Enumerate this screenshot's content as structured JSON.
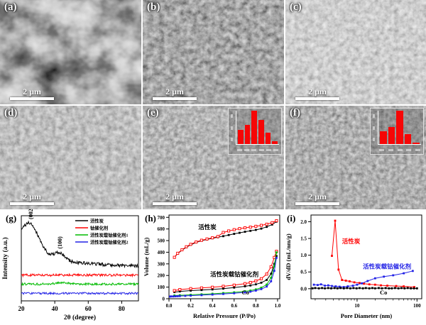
{
  "sem_panels": [
    {
      "label": "(a)",
      "scale_bar": "2 μm",
      "description": "macroporous activated carbon SEM"
    },
    {
      "label": "(b)",
      "scale_bar": "2 μm",
      "description": "rough aggregated carbon SEM"
    },
    {
      "label": "(c)",
      "scale_bar": "2 μm",
      "description": "fluffy granular particles SEM"
    },
    {
      "label": "(d)",
      "scale_bar": "2 μm",
      "description": "granular catalyst SEM"
    },
    {
      "label": "(e)",
      "scale_bar": "2 μm",
      "description": "catalyst SEM with size-distribution inset",
      "inset": {
        "bar_color": "#f60606",
        "bars": [
          0.42,
          0.58,
          1.0,
          0.72,
          0.35,
          0.08
        ]
      }
    },
    {
      "label": "(f)",
      "scale_bar": "2 μm",
      "description": "catalyst SEM with size-distribution inset",
      "inset": {
        "bar_color": "#f60606",
        "bars": [
          0.38,
          0.52,
          1.0,
          0.3,
          0.05
        ]
      }
    }
  ],
  "chart_data": [
    {
      "id": "g",
      "type": "line",
      "panel_label": "(g)",
      "xlabel": "2θ (degree)",
      "ylabel": "Intensity (a.u.)",
      "xlim": [
        20,
        90
      ],
      "x_ticks": [
        20,
        40,
        60,
        80
      ],
      "legend_position": "top-right",
      "grid": false,
      "peak_annotations": [
        {
          "text": "(002)",
          "x": 25.5
        },
        {
          "text": "(100)",
          "x": 43
        }
      ],
      "series": [
        {
          "name": "活性炭",
          "color": "#000000",
          "baseline": 2.85,
          "decay": 0.5,
          "noise": 0.14,
          "peaks": [
            {
              "center": 25.5,
              "height": 1.9,
              "width": 7
            },
            {
              "center": 43,
              "height": 0.55,
              "width": 4.5
            },
            {
              "center": 14,
              "height": 1.6,
              "width": 20
            }
          ]
        },
        {
          "name": "钴催化剂",
          "color": "#ff0000",
          "baseline": 2.12,
          "decay": 0,
          "noise": 0.1,
          "peaks": []
        },
        {
          "name": "活性炭载钴催化剂1",
          "color": "#00bb00",
          "baseline": 1.38,
          "decay": 0,
          "noise": 0.09,
          "peaks": [
            {
              "center": 44,
              "height": 0.12,
              "width": 5
            }
          ]
        },
        {
          "name": "活性炭载钴催化剂2",
          "color": "#2222e6",
          "baseline": 0.62,
          "decay": 0,
          "noise": 0.08,
          "peaks": []
        }
      ]
    },
    {
      "id": "h",
      "type": "line",
      "panel_label": "(h)",
      "xlabel": "Relative Pressure (P/Po)",
      "ylabel": "Volume (mL/g)",
      "xlim": [
        0,
        1.02
      ],
      "ylim": [
        0,
        720
      ],
      "x_ticks": [
        0,
        0.2,
        0.4,
        0.6,
        0.8,
        1.0
      ],
      "y_ticks": [
        0,
        100,
        200,
        300,
        400,
        500,
        600,
        700
      ],
      "annotations": [
        {
          "text": "活性炭",
          "x": 0.27,
          "y": 598,
          "color": "#000000"
        },
        {
          "text": "活性炭载钴催化剂",
          "x": 0.38,
          "y": 193,
          "color": "#000000"
        },
        {
          "text": "Co",
          "x": 0.67,
          "y": 36,
          "color": "#000000"
        }
      ],
      "series": [
        {
          "name": "活性炭",
          "color": "#000000",
          "marker": "filled",
          "points": [
            [
              0.05,
              355
            ],
            [
              0.08,
              388
            ],
            [
              0.12,
              418
            ],
            [
              0.16,
              443
            ],
            [
              0.2,
              464
            ],
            [
              0.25,
              484
            ],
            [
              0.3,
              499
            ],
            [
              0.35,
              510
            ],
            [
              0.4,
              520
            ],
            [
              0.45,
              529
            ],
            [
              0.5,
              538
            ],
            [
              0.55,
              548
            ],
            [
              0.6,
              558
            ],
            [
              0.65,
              567
            ],
            [
              0.7,
              576
            ],
            [
              0.75,
              584
            ],
            [
              0.8,
              592
            ],
            [
              0.85,
              603
            ],
            [
              0.9,
              618
            ],
            [
              0.95,
              638
            ],
            [
              0.99,
              663
            ]
          ]
        },
        {
          "name": "活性炭",
          "color": "#ff0000",
          "marker": "open",
          "points": [
            [
              0.05,
              356
            ],
            [
              0.08,
              391
            ],
            [
              0.12,
              421
            ],
            [
              0.16,
              447
            ],
            [
              0.2,
              468
            ],
            [
              0.25,
              488
            ],
            [
              0.3,
              503
            ],
            [
              0.35,
              514
            ],
            [
              0.4,
              524
            ],
            [
              0.45,
              535
            ],
            [
              0.5,
              570
            ],
            [
              0.55,
              583
            ],
            [
              0.6,
              594
            ],
            [
              0.65,
              603
            ],
            [
              0.7,
              610
            ],
            [
              0.75,
              616
            ],
            [
              0.8,
              623
            ],
            [
              0.85,
              631
            ],
            [
              0.9,
              641
            ],
            [
              0.95,
              654
            ],
            [
              0.99,
              671
            ]
          ]
        },
        {
          "name": "活性炭载钴催化剂",
          "color": "#000000",
          "marker": "filled",
          "points": [
            [
              0.05,
              57
            ],
            [
              0.1,
              63
            ],
            [
              0.2,
              70
            ],
            [
              0.3,
              75
            ],
            [
              0.4,
              80
            ],
            [
              0.5,
              87
            ],
            [
              0.6,
              96
            ],
            [
              0.7,
              107
            ],
            [
              0.75,
              114
            ],
            [
              0.8,
              124
            ],
            [
              0.85,
              138
            ],
            [
              0.9,
              162
            ],
            [
              0.94,
              215
            ],
            [
              0.97,
              300
            ],
            [
              0.99,
              368
            ]
          ]
        },
        {
          "name": "活性炭载钴催化剂",
          "color": "#ff0000",
          "marker": "open",
          "points": [
            [
              0.05,
              70
            ],
            [
              0.1,
              79
            ],
            [
              0.2,
              87
            ],
            [
              0.3,
              93
            ],
            [
              0.4,
              99
            ],
            [
              0.5,
              107
            ],
            [
              0.6,
              117
            ],
            [
              0.7,
              130
            ],
            [
              0.75,
              140
            ],
            [
              0.8,
              153
            ],
            [
              0.85,
              172
            ],
            [
              0.9,
              212
            ],
            [
              0.94,
              275
            ],
            [
              0.97,
              355
            ],
            [
              0.99,
              408
            ]
          ]
        },
        {
          "name": "Co",
          "color": "#00bb00",
          "marker": "filled",
          "points": [
            [
              0.05,
              28
            ],
            [
              0.1,
              30
            ],
            [
              0.2,
              34
            ],
            [
              0.3,
              38
            ],
            [
              0.4,
              43
            ],
            [
              0.5,
              49
            ],
            [
              0.6,
              55
            ],
            [
              0.7,
              64
            ],
            [
              0.75,
              70
            ],
            [
              0.8,
              80
            ],
            [
              0.85,
              95
            ],
            [
              0.9,
              122
            ],
            [
              0.94,
              180
            ],
            [
              0.97,
              280
            ],
            [
              0.99,
              398
            ]
          ]
        },
        {
          "name": "Co",
          "color": "#2222e6",
          "marker": "filled",
          "points": [
            [
              0.01,
              19
            ],
            [
              0.02,
              20
            ],
            [
              0.04,
              20
            ],
            [
              0.06,
              21
            ],
            [
              0.08,
              22
            ],
            [
              0.1,
              23
            ],
            [
              0.15,
              25
            ],
            [
              0.2,
              27
            ],
            [
              0.3,
              31
            ],
            [
              0.4,
              36
            ],
            [
              0.5,
              41
            ],
            [
              0.6,
              47
            ],
            [
              0.7,
              55
            ],
            [
              0.75,
              61
            ],
            [
              0.8,
              70
            ],
            [
              0.85,
              83
            ],
            [
              0.9,
              105
            ],
            [
              0.94,
              150
            ],
            [
              0.97,
              240
            ],
            [
              0.99,
              352
            ]
          ]
        }
      ]
    },
    {
      "id": "i",
      "type": "line",
      "panel_label": "(i)",
      "xlabel": "Pore Diameter (nm)",
      "ylabel": "dV/dD (mL/nm/g)",
      "x_scale": "log",
      "xlim": [
        1.7,
        120
      ],
      "ylim": [
        -0.3,
        2.2
      ],
      "x_ticks": [
        10,
        100
      ],
      "x_minor": [
        2,
        3,
        4,
        5,
        6,
        7,
        8,
        9,
        20,
        30,
        40,
        50,
        60,
        70,
        80,
        90
      ],
      "y_ticks": [
        0,
        0.5,
        1,
        1.5,
        2
      ],
      "annotations": [
        {
          "text": "活性炭",
          "x": 5.6,
          "y": 1.35,
          "color": "#ff0000"
        },
        {
          "text": "活性炭载钴催化剂",
          "x": 12.5,
          "y": 0.6,
          "color": "#2222e6"
        },
        {
          "text": "Co",
          "x": 24,
          "y": -0.17,
          "color": "#000000"
        }
      ],
      "series": [
        {
          "name": "活性炭",
          "color": "#ff0000",
          "marker": "filled",
          "points": [
            [
              3.8,
              0.98
            ],
            [
              4.3,
              2.03
            ],
            [
              4.9,
              0.57
            ],
            [
              5.6,
              0.26
            ],
            [
              6.5,
              0.24
            ],
            [
              7.5,
              0.22
            ],
            [
              9,
              0.19
            ],
            [
              11,
              0.17
            ],
            [
              13,
              0.15
            ],
            [
              16,
              0.13
            ],
            [
              20,
              0.12
            ],
            [
              25,
              0.1
            ],
            [
              32,
              0.09
            ],
            [
              45,
              0.08
            ],
            [
              60,
              0.07
            ],
            [
              90,
              0.05
            ]
          ]
        },
        {
          "name": "活性炭载钴催化剂",
          "color": "#2222e6",
          "marker": "filled",
          "points": [
            [
              1.9,
              0.12
            ],
            [
              2.2,
              0.11
            ],
            [
              2.5,
              0.13
            ],
            [
              2.9,
              0.09
            ],
            [
              3.3,
              0.1
            ],
            [
              3.8,
              0.08
            ],
            [
              4.4,
              0.07
            ],
            [
              5.1,
              0.06
            ],
            [
              6,
              0.05
            ],
            [
              7,
              0.07
            ],
            [
              8.5,
              0.09
            ],
            [
              10,
              0.12
            ],
            [
              12,
              0.16
            ],
            [
              15,
              0.23
            ],
            [
              20,
              0.31
            ],
            [
              28,
              0.36
            ],
            [
              40,
              0.4
            ],
            [
              60,
              0.46
            ],
            [
              85,
              0.53
            ]
          ]
        },
        {
          "name": "Co",
          "color": "#000000",
          "marker": "filled",
          "points": [
            [
              1.8,
              0.01
            ],
            [
              2,
              0.02
            ],
            [
              2.3,
              0.01
            ],
            [
              2.6,
              0.02
            ],
            [
              2.9,
              0.01
            ],
            [
              3.3,
              0.02
            ],
            [
              3.7,
              0.01
            ],
            [
              4.2,
              0.02
            ],
            [
              4.7,
              0.01
            ],
            [
              5.3,
              0.02
            ],
            [
              6,
              0.01
            ],
            [
              6.8,
              0.02
            ],
            [
              7.7,
              0.01
            ],
            [
              8.7,
              0.02
            ],
            [
              9.8,
              0.01
            ],
            [
              11,
              0.02
            ],
            [
              12.5,
              0.01
            ],
            [
              14,
              0.02
            ],
            [
              16,
              0.01
            ],
            [
              18,
              0.02
            ],
            [
              20,
              0.01
            ],
            [
              23,
              0.02
            ],
            [
              26,
              0.01
            ],
            [
              30,
              0.02
            ],
            [
              34,
              0.01
            ],
            [
              38,
              0.01
            ],
            [
              43,
              0.02
            ],
            [
              49,
              0.01
            ],
            [
              55,
              0.02
            ],
            [
              62,
              0.01
            ],
            [
              70,
              0.02
            ],
            [
              79,
              0.01
            ],
            [
              89,
              0.01
            ],
            [
              100,
              0.01
            ]
          ]
        }
      ]
    }
  ]
}
